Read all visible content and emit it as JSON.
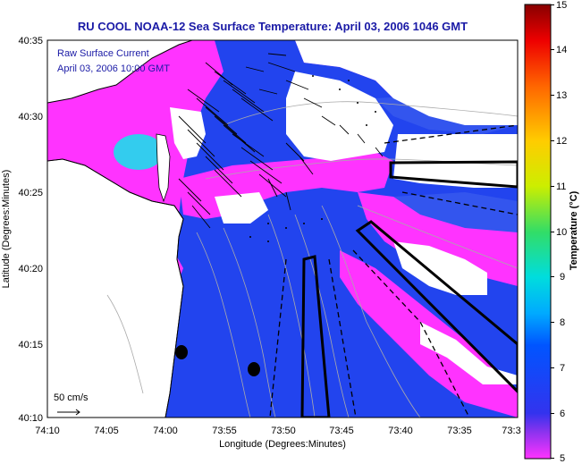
{
  "title": "RU COOL  NOAA-12  Sea Surface Temperature:  April 03, 2006 1046 GMT",
  "current_legend": {
    "line1": "Raw Surface Current",
    "line2": "April 03, 2006 10:00 GMT"
  },
  "scale_label": "50 cm/s",
  "axes": {
    "xlabel": "Longitude (Degrees:Minutes)",
    "ylabel": "Latitude (Degrees:Minutes)",
    "x_ticks": [
      "74:10",
      "74:05",
      "74:00",
      "73:55",
      "73:50",
      "73:45",
      "73:40",
      "73:35",
      "73:3"
    ],
    "y_ticks": [
      "40:35",
      "40:30",
      "40:25",
      "40:20",
      "40:15",
      "40:10"
    ]
  },
  "colorbar": {
    "label": "Temperature (°C)",
    "ticks": [
      "15",
      "14",
      "13",
      "12",
      "11",
      "10",
      "9",
      "8",
      "7",
      "6",
      "5"
    ],
    "range": [
      5,
      15
    ]
  },
  "colors": {
    "water_warm": "#2244ee",
    "water_cold": "#ff33ff",
    "land": "#ffffff",
    "title": "#1a1aa6"
  }
}
